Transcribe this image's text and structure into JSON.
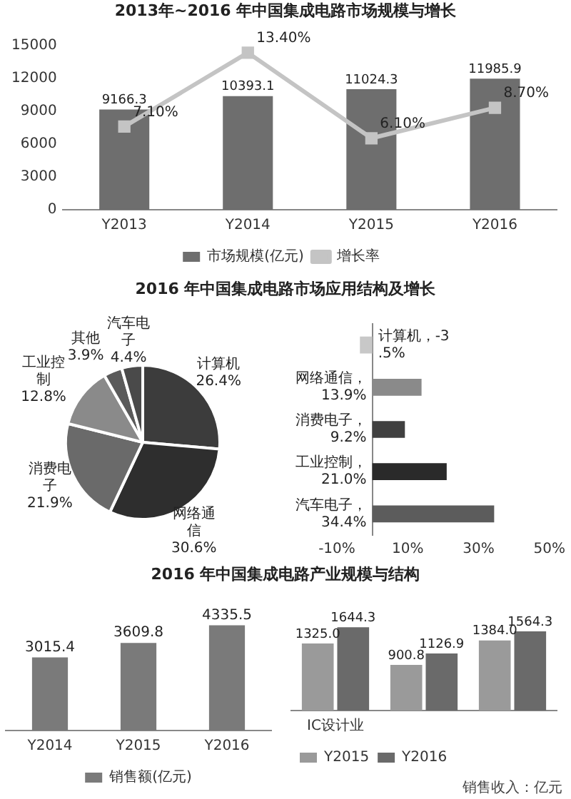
{
  "chart_data": [
    {
      "type": "bar",
      "title": "2013年~2016 年中国集成电路市场规模与增长",
      "categories": [
        "Y2013",
        "Y2014",
        "Y2015",
        "Y2016"
      ],
      "ylim": [
        0,
        15000
      ],
      "yticks": [
        0,
        3000,
        6000,
        9000,
        12000,
        15000
      ],
      "grid": false,
      "legend": "bottom",
      "marker": "square",
      "series": [
        {
          "name": "市场规模(亿元)",
          "color": "#6e6e6e",
          "values": [
            9166.3,
            10393.1,
            11024.3,
            11985.9
          ],
          "value_labels": [
            "9166.3",
            "10393.1",
            "11024.3",
            "11985.9"
          ]
        },
        {
          "name": "增长率",
          "type": "line",
          "axis": "y2",
          "color": "#c4c4c4",
          "values": [
            7.1,
            13.4,
            6.1,
            8.7
          ],
          "value_labels": [
            "7.10%",
            "13.40%",
            "6.10%",
            "8.70%"
          ]
        }
      ]
    },
    {
      "type": "pie",
      "title": "2016 年中国集成电路市场应用结构及增长",
      "categories": [
        "计算机",
        "网络通信",
        "消费电子",
        "工业控制",
        "其他",
        "汽车电子"
      ],
      "values": [
        26.4,
        30.6,
        21.9,
        12.8,
        3.9,
        4.4
      ],
      "value_labels": [
        "26.4%",
        "30.6%",
        "21.9%",
        "12.8%",
        "3.9%",
        "4.4%"
      ],
      "colors": [
        "#3c3c3c",
        "#2e2e2e",
        "#6a6a6a",
        "#8a8a8a",
        "#5a5a5a",
        "#4a4a4a"
      ],
      "legend": false
    },
    {
      "type": "bar",
      "orientation": "horizontal",
      "categories": [
        null,
        null,
        null,
        null,
        null
      ],
      "values": [
        -3.5,
        13.9,
        9.2,
        21.0,
        34.4
      ],
      "value_labels": [
        "计算机，-3.5%",
        "网络通信，13.9%",
        "消费电子，9.2%",
        "工业控制，21.0%",
        "汽车电子，34.4%"
      ],
      "colors": [
        "#c8c8c8",
        "#8a8a8a",
        "#404040",
        "#2a2a2a",
        "#5c5c5c"
      ],
      "xlim": [
        -10,
        50
      ],
      "xticks": [
        {
          "value": -10,
          "label": "-10%"
        },
        {
          "value": 10,
          "label": "10%"
        },
        {
          "value": 30,
          "label": "30%"
        },
        {
          "value": 50,
          "label": "50%"
        }
      ],
      "grid": false,
      "legend": false
    },
    {
      "type": "bar",
      "title": "2016 年中国集成电路产业规模与结构",
      "categories": [
        "Y2014",
        "Y2015",
        "Y2016"
      ],
      "grid": false,
      "legend": "bottom",
      "series": [
        {
          "name": "销售额(亿元)",
          "color": "#7a7a7a",
          "values": [
            3015.4,
            3609.8,
            4335.5
          ],
          "value_labels": [
            "3015.4",
            "3609.8",
            "4335.5"
          ]
        }
      ]
    },
    {
      "type": "bar",
      "categories": [
        "IC设计业",
        null,
        null
      ],
      "grid": false,
      "legend": "bottom left",
      "annotations": [
        "销售收入：亿元"
      ],
      "series": [
        {
          "name": "Y2015",
          "color": "#9a9a9a",
          "values": [
            1325.0,
            900.8,
            1384.0
          ],
          "value_labels": [
            "1325.0",
            "900.8",
            "1384.0"
          ]
        },
        {
          "name": "Y2016",
          "color": "#6a6a6a",
          "values": [
            1644.3,
            1126.9,
            1564.3
          ],
          "value_labels": [
            "1644.3",
            "1126.9",
            "1564.3"
          ]
        }
      ]
    }
  ]
}
